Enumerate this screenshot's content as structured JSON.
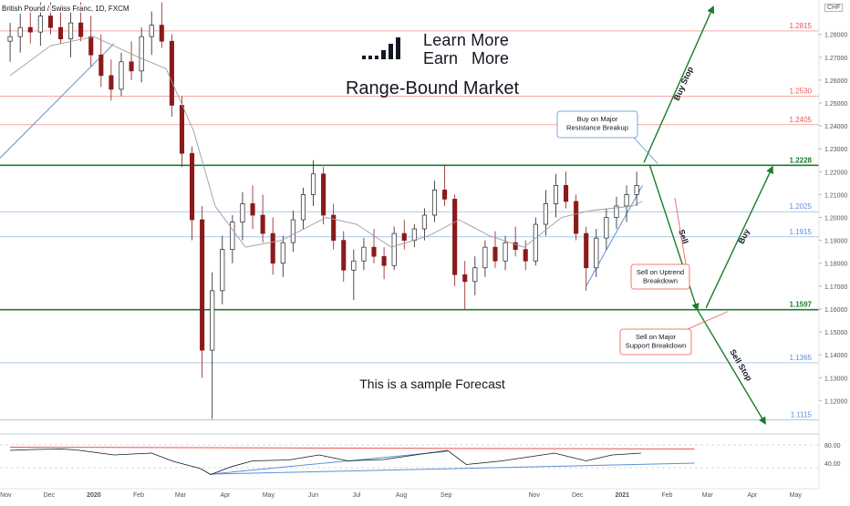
{
  "chart_data": {
    "type": "candlestick",
    "symbol_title": "British Pound / Swiss Franc, 1D, FXCM",
    "currency_badge": "CHF",
    "brand": {
      "line1": "Learn More",
      "line2": "Earn   More",
      "icon": "bar-signal-logo-icon"
    },
    "headline": "Range-Bound Market",
    "footer_note": "This is a sample Forecast",
    "price_axis": {
      "min": 1.107,
      "max": 1.295,
      "ticks": [
        1.28,
        1.27,
        1.26,
        1.25,
        1.24,
        1.23,
        1.22,
        1.21,
        1.2,
        1.19,
        1.18,
        1.17,
        1.16,
        1.15,
        1.14,
        1.13,
        1.12
      ]
    },
    "time_axis": [
      {
        "label": "Nov",
        "x": "2019-11-01"
      },
      {
        "label": "Dec",
        "x": "2019-12-01"
      },
      {
        "label": "2020",
        "x": "2020-01-01"
      },
      {
        "label": "Feb",
        "x": "2020-02-01"
      },
      {
        "label": "Mar",
        "x": "2020-03-01"
      },
      {
        "label": "Apr",
        "x": "2020-04-01"
      },
      {
        "label": "May",
        "x": "2020-05-01"
      },
      {
        "label": "Jun",
        "x": "2020-06-01"
      },
      {
        "label": "Jul",
        "x": "2020-07-01"
      },
      {
        "label": "Aug",
        "x": "2020-08-01"
      },
      {
        "label": "Sep",
        "x": "2020-09-01"
      },
      {
        "label": "Nov",
        "x": "2020-11-01"
      },
      {
        "label": "Dec",
        "x": "2020-12-01"
      },
      {
        "label": "2021",
        "x": "2021-01-01"
      },
      {
        "label": "Feb",
        "x": "2021-02-01"
      },
      {
        "label": "Mar",
        "x": "2021-03-01"
      },
      {
        "label": "Apr",
        "x": "2021-04-01"
      },
      {
        "label": "May",
        "x": "2021-05-01"
      }
    ],
    "levels": [
      {
        "value": 1.2815,
        "label": "1.2815",
        "kind": "resistance-minor",
        "color": "#ef5350"
      },
      {
        "value": 1.253,
        "label": "1.2530",
        "kind": "resistance-minor",
        "color": "#ef5350"
      },
      {
        "value": 1.2405,
        "label": "1.2405",
        "kind": "resistance-minor",
        "color": "#ef5350"
      },
      {
        "value": 1.2228,
        "label": "1.2228",
        "kind": "range-top",
        "color": "#1b7d2a"
      },
      {
        "value": 1.2025,
        "label": "1.2025",
        "kind": "support-minor",
        "color": "#5b8fd6"
      },
      {
        "value": 1.1915,
        "label": "1.1915",
        "kind": "support-minor",
        "color": "#5b8fd6"
      },
      {
        "value": 1.1597,
        "label": "1.1597",
        "kind": "range-bottom",
        "color": "#1b7d2a"
      },
      {
        "value": 1.1365,
        "label": "1.1365",
        "kind": "support-minor",
        "color": "#5b8fd6"
      },
      {
        "value": 1.1115,
        "label": "1.1115",
        "kind": "support-minor",
        "color": "#5b8fd6"
      }
    ],
    "candles_ohlc": [
      [
        "2019-11-04",
        1.277,
        1.285,
        1.268,
        1.279
      ],
      [
        "2019-11-11",
        1.279,
        1.289,
        1.272,
        1.283
      ],
      [
        "2019-11-18",
        1.283,
        1.292,
        1.276,
        1.281
      ],
      [
        "2019-11-25",
        1.281,
        1.294,
        1.275,
        1.288
      ],
      [
        "2019-12-02",
        1.288,
        1.294,
        1.28,
        1.283
      ],
      [
        "2019-12-09",
        1.283,
        1.293,
        1.276,
        1.278
      ],
      [
        "2019-12-16",
        1.278,
        1.29,
        1.27,
        1.285
      ],
      [
        "2019-12-23",
        1.285,
        1.294,
        1.277,
        1.279
      ],
      [
        "2019-12-30",
        1.279,
        1.288,
        1.266,
        1.271
      ],
      [
        "2020-01-06",
        1.271,
        1.28,
        1.257,
        1.262
      ],
      [
        "2020-01-13",
        1.262,
        1.269,
        1.251,
        1.256
      ],
      [
        "2020-01-20",
        1.256,
        1.272,
        1.253,
        1.268
      ],
      [
        "2020-01-27",
        1.268,
        1.277,
        1.26,
        1.264
      ],
      [
        "2020-02-03",
        1.264,
        1.283,
        1.259,
        1.279
      ],
      [
        "2020-02-10",
        1.279,
        1.29,
        1.271,
        1.284
      ],
      [
        "2020-02-17",
        1.284,
        1.294,
        1.274,
        1.277
      ],
      [
        "2020-02-24",
        1.277,
        1.28,
        1.244,
        1.249
      ],
      [
        "2020-03-02",
        1.249,
        1.253,
        1.222,
        1.228
      ],
      [
        "2020-03-09",
        1.228,
        1.231,
        1.19,
        1.199
      ],
      [
        "2020-03-16",
        1.199,
        1.205,
        1.13,
        1.142
      ],
      [
        "2020-03-23",
        1.142,
        1.176,
        1.112,
        1.168
      ],
      [
        "2020-03-30",
        1.168,
        1.192,
        1.162,
        1.186
      ],
      [
        "2020-04-06",
        1.186,
        1.201,
        1.18,
        1.198
      ],
      [
        "2020-04-13",
        1.198,
        1.211,
        1.19,
        1.206
      ],
      [
        "2020-04-20",
        1.206,
        1.214,
        1.195,
        1.201
      ],
      [
        "2020-04-27",
        1.201,
        1.21,
        1.189,
        1.193
      ],
      [
        "2020-05-04",
        1.193,
        1.2,
        1.175,
        1.18
      ],
      [
        "2020-05-11",
        1.18,
        1.192,
        1.174,
        1.189
      ],
      [
        "2020-05-18",
        1.189,
        1.203,
        1.185,
        1.199
      ],
      [
        "2020-05-25",
        1.199,
        1.213,
        1.195,
        1.21
      ],
      [
        "2020-06-01",
        1.21,
        1.225,
        1.205,
        1.219
      ],
      [
        "2020-06-08",
        1.219,
        1.222,
        1.197,
        1.201
      ],
      [
        "2020-06-15",
        1.201,
        1.206,
        1.186,
        1.19
      ],
      [
        "2020-06-22",
        1.19,
        1.194,
        1.172,
        1.177
      ],
      [
        "2020-06-29",
        1.177,
        1.186,
        1.164,
        1.181
      ],
      [
        "2020-07-06",
        1.181,
        1.191,
        1.177,
        1.187
      ],
      [
        "2020-07-13",
        1.187,
        1.195,
        1.18,
        1.183
      ],
      [
        "2020-07-20",
        1.183,
        1.187,
        1.173,
        1.179
      ],
      [
        "2020-07-27",
        1.179,
        1.196,
        1.177,
        1.193
      ],
      [
        "2020-08-03",
        1.193,
        1.199,
        1.186,
        1.19
      ],
      [
        "2020-08-10",
        1.19,
        1.197,
        1.187,
        1.195
      ],
      [
        "2020-08-17",
        1.195,
        1.204,
        1.19,
        1.201
      ],
      [
        "2020-08-24",
        1.201,
        1.216,
        1.198,
        1.212
      ],
      [
        "2020-08-31",
        1.212,
        1.223,
        1.205,
        1.208
      ],
      [
        "2020-09-07",
        1.208,
        1.21,
        1.17,
        1.175
      ],
      [
        "2020-09-14",
        1.175,
        1.181,
        1.16,
        1.172
      ],
      [
        "2020-09-21",
        1.172,
        1.183,
        1.166,
        1.178
      ],
      [
        "2020-09-28",
        1.178,
        1.19,
        1.174,
        1.187
      ],
      [
        "2020-10-05",
        1.187,
        1.194,
        1.178,
        1.181
      ],
      [
        "2020-10-12",
        1.181,
        1.192,
        1.177,
        1.189
      ],
      [
        "2020-10-19",
        1.189,
        1.196,
        1.183,
        1.186
      ],
      [
        "2020-10-26",
        1.186,
        1.19,
        1.177,
        1.181
      ],
      [
        "2020-11-02",
        1.181,
        1.2,
        1.179,
        1.197
      ],
      [
        "2020-11-09",
        1.197,
        1.212,
        1.192,
        1.206
      ],
      [
        "2020-11-16",
        1.206,
        1.219,
        1.2,
        1.214
      ],
      [
        "2020-11-23",
        1.214,
        1.22,
        1.204,
        1.207
      ],
      [
        "2020-11-30",
        1.207,
        1.21,
        1.19,
        1.193
      ],
      [
        "2020-12-07",
        1.193,
        1.196,
        1.168,
        1.178
      ],
      [
        "2020-12-14",
        1.178,
        1.195,
        1.174,
        1.191
      ],
      [
        "2020-12-21",
        1.191,
        1.204,
        1.186,
        1.2
      ],
      [
        "2020-12-28",
        1.2,
        1.209,
        1.195,
        1.205
      ],
      [
        "2021-01-04",
        1.205,
        1.214,
        1.198,
        1.21
      ],
      [
        "2021-01-11",
        1.21,
        1.22,
        1.205,
        1.214
      ]
    ],
    "moving_average": [
      [
        "2019-11-04",
        1.262
      ],
      [
        "2019-12-02",
        1.275
      ],
      [
        "2020-01-01",
        1.279
      ],
      [
        "2020-02-01",
        1.27
      ],
      [
        "2020-02-20",
        1.265
      ],
      [
        "2020-03-10",
        1.238
      ],
      [
        "2020-03-25",
        1.205
      ],
      [
        "2020-04-15",
        1.187
      ],
      [
        "2020-05-10",
        1.19
      ],
      [
        "2020-06-10",
        1.2
      ],
      [
        "2020-07-01",
        1.197
      ],
      [
        "2020-07-25",
        1.187
      ],
      [
        "2020-08-20",
        1.192
      ],
      [
        "2020-09-10",
        1.199
      ],
      [
        "2020-10-01",
        1.192
      ],
      [
        "2020-10-25",
        1.187
      ],
      [
        "2020-11-20",
        1.2
      ],
      [
        "2020-12-10",
        1.203
      ],
      [
        "2021-01-08",
        1.205
      ],
      [
        "2021-01-15",
        1.207
      ]
    ],
    "trendlines": [
      {
        "from": [
          "2019-10-28",
          1.226
        ],
        "to": [
          "2020-01-15",
          1.276
        ],
        "color": "#5b8fd6"
      },
      {
        "from": [
          "2020-12-07",
          1.17
        ],
        "to": [
          "2021-01-15",
          1.214
        ],
        "color": "#5b8fd6"
      }
    ],
    "forecast_arrows": [
      {
        "label": "Buy Stop",
        "from": [
          "2021-01-16",
          1.224
        ],
        "to": [
          "2021-03-05",
          1.292
        ]
      },
      {
        "label": "Sell",
        "from": [
          "2021-01-20",
          1.2228
        ],
        "to": [
          "2021-02-22",
          1.1597
        ]
      },
      {
        "label": "Buy",
        "from": [
          "2021-02-28",
          1.1605
        ],
        "to": [
          "2021-04-15",
          1.222
        ]
      },
      {
        "label": "Sell Stop",
        "from": [
          "2021-02-22",
          1.1597
        ],
        "to": [
          "2021-04-10",
          1.11
        ]
      }
    ],
    "callouts": [
      {
        "lines": [
          "Buy on Major",
          "Resistance Breakup"
        ],
        "border": "#5b8fd6",
        "anchor": "top"
      },
      {
        "lines": [
          "Sell on Uptrend",
          "Breakdown"
        ],
        "border": "#ef5350",
        "anchor": "mid"
      },
      {
        "lines": [
          "Sell on Major",
          "Support Breakdown"
        ],
        "border": "#ef5350",
        "anchor": "bottom"
      }
    ],
    "rsi_panel": {
      "axis_labels": [
        "80.00",
        "40.00"
      ],
      "levels": [
        80,
        30
      ],
      "series": [
        [
          "2019-11-04",
          68
        ],
        [
          "2019-11-20",
          70
        ],
        [
          "2019-12-10",
          71
        ],
        [
          "2019-12-20",
          69
        ],
        [
          "2020-01-15",
          58
        ],
        [
          "2020-02-10",
          62
        ],
        [
          "2020-02-25",
          44
        ],
        [
          "2020-03-15",
          28
        ],
        [
          "2020-03-22",
          15
        ],
        [
          "2020-04-05",
          32
        ],
        [
          "2020-04-20",
          45
        ],
        [
          "2020-05-15",
          47
        ],
        [
          "2020-06-05",
          58
        ],
        [
          "2020-06-25",
          45
        ],
        [
          "2020-07-20",
          48
        ],
        [
          "2020-08-15",
          60
        ],
        [
          "2020-09-02",
          68
        ],
        [
          "2020-09-15",
          37
        ],
        [
          "2020-10-10",
          45
        ],
        [
          "2020-11-15",
          62
        ],
        [
          "2020-12-07",
          45
        ],
        [
          "2020-12-25",
          58
        ],
        [
          "2021-01-14",
          62
        ]
      ],
      "trendlines": [
        {
          "from": [
            "2020-03-22",
            16
          ],
          "to": [
            "2020-09-02",
            66
          ],
          "color": "#5b8fd6"
        },
        {
          "from": [
            "2020-03-22",
            16
          ],
          "to": [
            "2021-02-20",
            40
          ],
          "color": "#5b8fd6"
        },
        {
          "from": [
            "2019-11-04",
            75
          ],
          "to": [
            "2021-02-20",
            71
          ],
          "color": "#ef5350"
        }
      ]
    }
  }
}
